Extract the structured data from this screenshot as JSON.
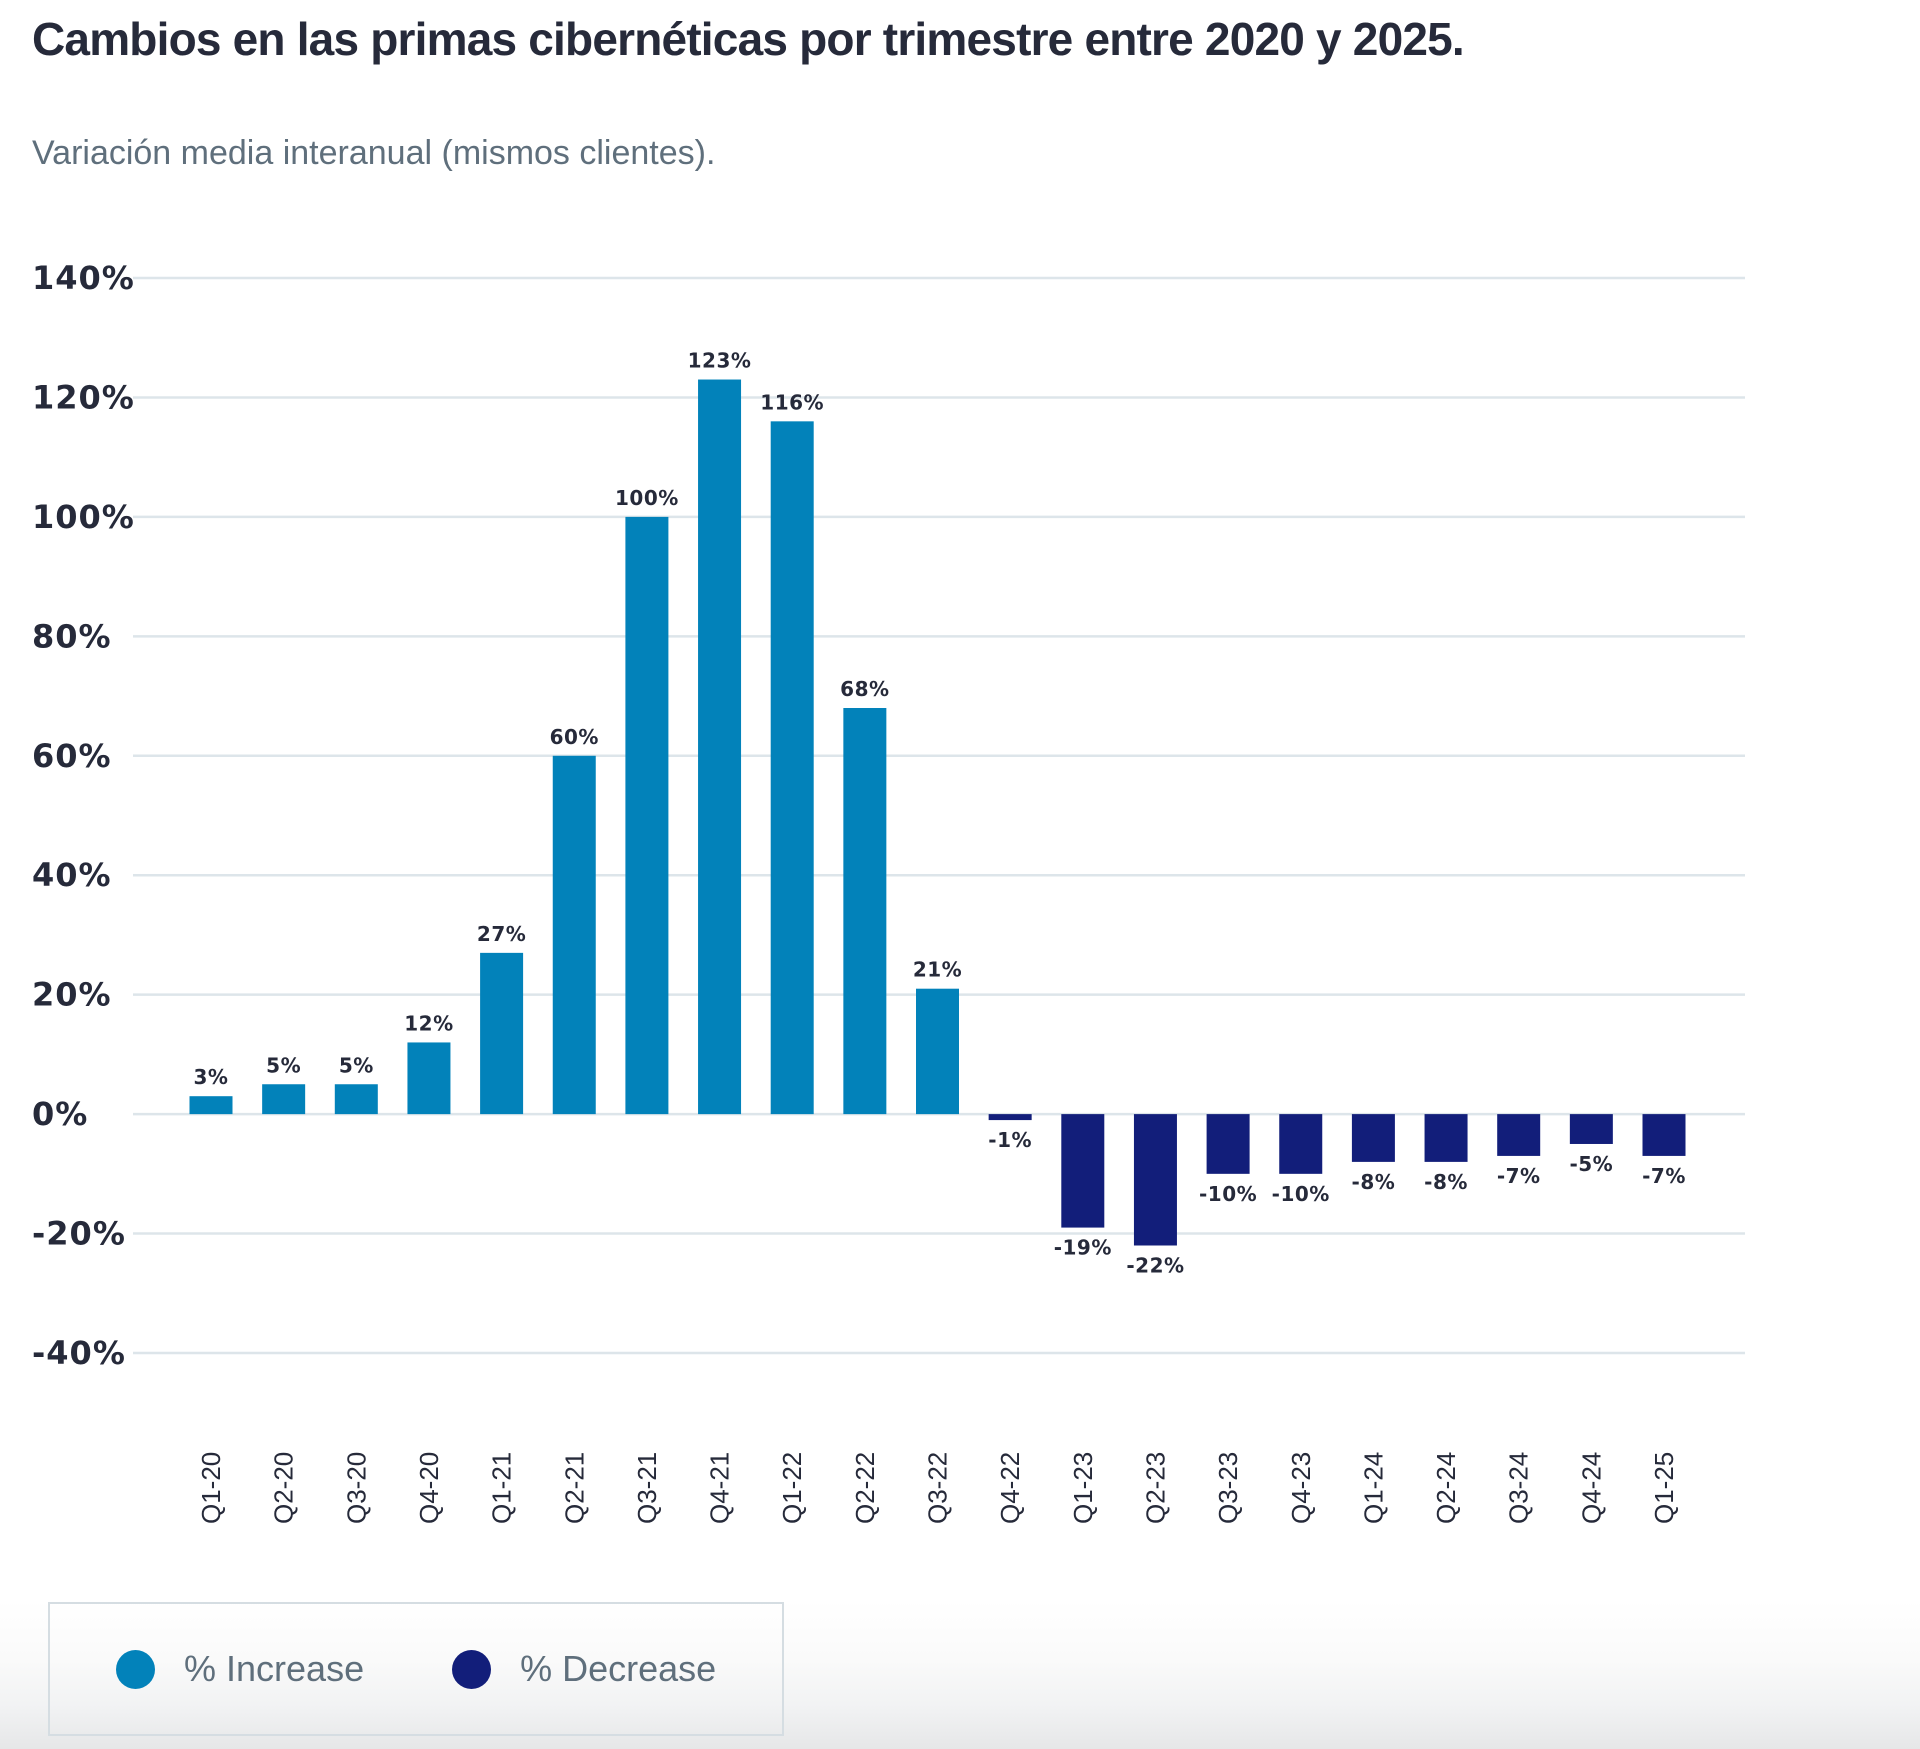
{
  "header": {
    "title": "Cambios en las primas cibernéticas por trimestre entre 2020 y 2025.",
    "subtitle": "Variación media interanual (mismos clientes)."
  },
  "legend": {
    "items": [
      {
        "label": "% Increase",
        "color": "#0282BA",
        "icon": "circle-icon"
      },
      {
        "label": "% Decrease",
        "color": "#121E7A",
        "icon": "circle-icon"
      }
    ]
  },
  "chart_data": {
    "type": "bar",
    "title": "Cambios en las primas cibernéticas por trimestre entre 2020 y 2025.",
    "subtitle": "Variación media interanual (mismos clientes).",
    "xlabel": "",
    "ylabel": "",
    "categories": [
      "Q1-20",
      "Q2-20",
      "Q3-20",
      "Q4-20",
      "Q1-21",
      "Q2-21",
      "Q3-21",
      "Q4-21",
      "Q1-22",
      "Q2-22",
      "Q3-22",
      "Q4-22",
      "Q1-23",
      "Q2-23",
      "Q3-23",
      "Q4-23",
      "Q1-24",
      "Q2-24",
      "Q3-24",
      "Q4-24",
      "Q1-25"
    ],
    "values": [
      3,
      5,
      5,
      12,
      27,
      60,
      100,
      123,
      116,
      68,
      21,
      -1,
      -19,
      -22,
      -10,
      -10,
      -8,
      -8,
      -7,
      -5,
      -7
    ],
    "value_labels": [
      "3%",
      "5%",
      "5%",
      "12%",
      "27%",
      "60%",
      "100%",
      "123%",
      "116%",
      "68%",
      "21%",
      "-1%",
      "-19%",
      "-22%",
      "-10%",
      "-10%",
      "-8%",
      "-8%",
      "-7%",
      "-5%",
      "-7%"
    ],
    "ylim": [
      -40,
      140
    ],
    "yticks": [
      140,
      120,
      100,
      80,
      60,
      40,
      20,
      0,
      -20,
      -40
    ],
    "ytick_labels": [
      "140%",
      "120%",
      "100%",
      "80%",
      "60%",
      "40%",
      "20%",
      "0%",
      "-20%",
      "-40%"
    ],
    "grid": true,
    "colors": {
      "increase": "#0282BA",
      "decrease": "#121E7A",
      "grid": "#dde5ea"
    },
    "legend": {
      "position": "bottom-left",
      "entries": [
        "% Increase",
        "% Decrease"
      ]
    }
  }
}
